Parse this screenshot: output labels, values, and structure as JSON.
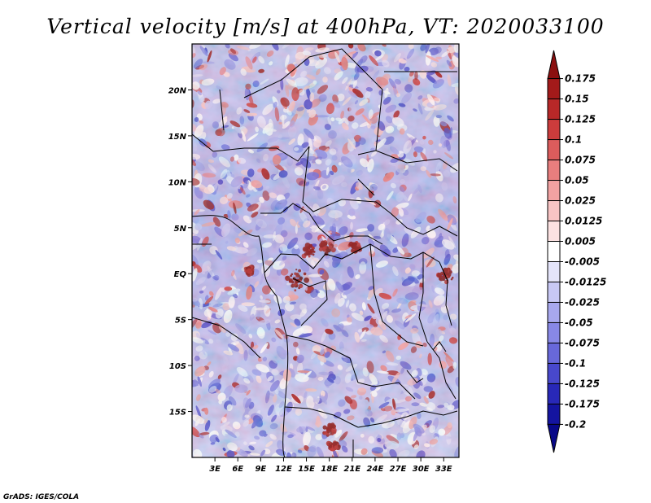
{
  "chart_data": {
    "type": "heatmap",
    "title": "Vertical velocity [m/s] at 400hPa, VT: 2020033100",
    "variable": "Vertical velocity",
    "units": "m/s",
    "pressure_level": "400hPa",
    "valid_time": "2020033100",
    "x_ticks": [
      "3E",
      "6E",
      "9E",
      "12E",
      "15E",
      "18E",
      "21E",
      "24E",
      "27E",
      "30E",
      "33E"
    ],
    "y_ticks": [
      "20N",
      "15N",
      "10N",
      "5N",
      "EQ",
      "5S",
      "10S",
      "15S"
    ],
    "x_range": [
      0,
      35
    ],
    "y_range": [
      -20,
      25
    ],
    "colorbar_levels": [
      "0.175",
      "0.15",
      "0.125",
      "0.1",
      "0.075",
      "0.05",
      "0.025",
      "0.0125",
      "0.005",
      "-0.005",
      "-0.0125",
      "-0.025",
      "-0.05",
      "-0.075",
      "-0.1",
      "-0.125",
      "-0.175",
      "-0.2"
    ],
    "colorbar_colors": [
      "#8b1010",
      "#a31a1a",
      "#b82828",
      "#cc3c3c",
      "#dc5c5c",
      "#e87e7e",
      "#f2a2a2",
      "#f8c4c4",
      "#fce2e2",
      "#ffffff",
      "#e4e4fa",
      "#c8c8f5",
      "#a8a8ee",
      "#8888e6",
      "#6868da",
      "#4848cc",
      "#2828b8",
      "#1414a0",
      "#080888"
    ]
  },
  "credit": "GrADS: IGES/COLA"
}
